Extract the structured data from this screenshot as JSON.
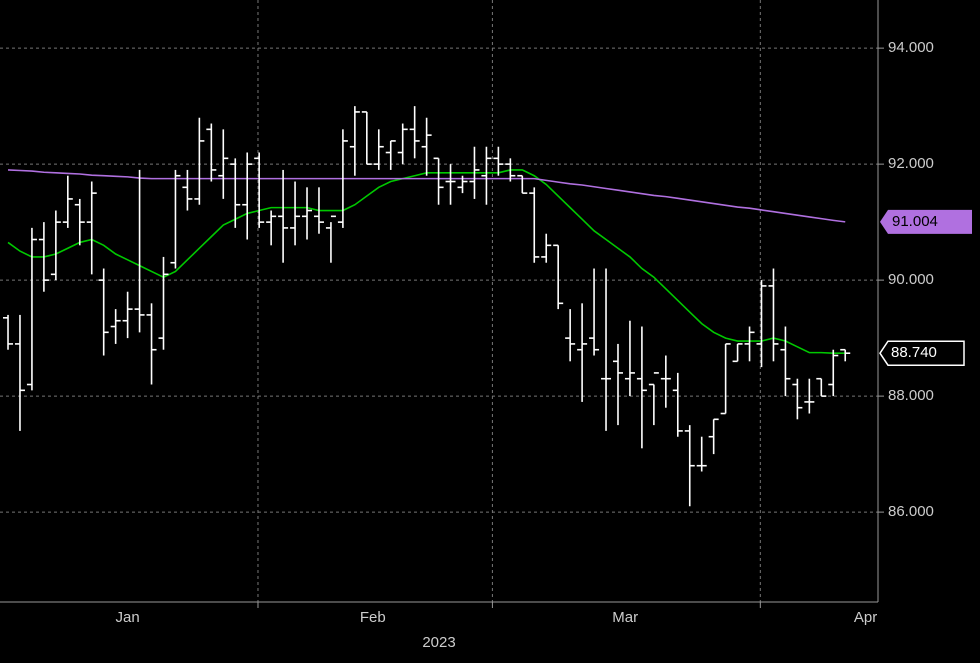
{
  "chart_data": {
    "type": "ohlc",
    "xlim": [
      -0.67,
      72.74
    ],
    "ylim": [
      84.45,
      94.83
    ],
    "yticks": [
      {
        "value": 86,
        "label": "86.000"
      },
      {
        "value": 88,
        "label": "88.000"
      },
      {
        "value": 90,
        "label": "90.000"
      },
      {
        "value": 92,
        "label": "92.000"
      },
      {
        "value": 94,
        "label": "94.000"
      }
    ],
    "xticks": [
      {
        "value": 10.0,
        "label": "Jan"
      },
      {
        "value": 30.5,
        "label": "Feb"
      },
      {
        "value": 51.6,
        "label": "Mar"
      },
      {
        "value": 71.7,
        "label": "Apr"
      }
    ],
    "xgrid": [
      20.9,
      40.5,
      62.9
    ],
    "x_title": "2023",
    "grid": true,
    "ohlc": {
      "color": "#ffffff",
      "open": [
        89.35,
        88.9,
        88.2,
        90.7,
        90.1,
        91.0,
        91.3,
        91.0,
        90.0,
        89.2,
        89.3,
        89.5,
        89.4,
        89.0,
        90.3,
        91.6,
        91.4,
        92.6,
        91.8,
        92.0,
        91.3,
        92.1,
        91.0,
        91.1,
        90.9,
        91.1,
        91.1,
        90.9,
        91.0,
        92.3,
        92.9,
        92.0,
        92.2,
        92.2,
        92.6,
        92.3,
        92.1,
        91.7,
        91.6,
        91.7,
        91.8,
        92.1,
        92.0,
        91.8,
        91.5,
        90.4,
        90.6,
        89.0,
        88.8,
        89.0,
        88.3,
        88.6,
        88.3,
        88.3,
        88.2,
        88.3,
        88.1,
        87.4,
        86.8,
        87.3,
        87.7,
        88.6,
        88.9,
        88.9,
        89.9,
        88.8,
        88.2,
        87.9,
        88.3,
        88.2,
        88.8
      ],
      "high": [
        89.4,
        89.4,
        90.9,
        91.0,
        91.2,
        91.8,
        91.4,
        91.7,
        90.2,
        89.5,
        89.8,
        91.9,
        89.6,
        90.4,
        91.9,
        91.9,
        92.8,
        92.7,
        92.6,
        92.1,
        92.2,
        92.2,
        91.2,
        91.9,
        91.7,
        91.6,
        91.6,
        91.0,
        92.6,
        93.0,
        92.9,
        92.6,
        92.4,
        92.7,
        93.0,
        92.8,
        92.1,
        92.0,
        91.8,
        92.3,
        92.3,
        92.3,
        92.1,
        91.8,
        91.6,
        90.8,
        90.6,
        89.5,
        89.6,
        90.2,
        90.2,
        88.9,
        89.3,
        89.2,
        88.2,
        88.7,
        88.4,
        87.5,
        87.3,
        87.6,
        88.9,
        88.9,
        89.2,
        90.0,
        90.2,
        89.2,
        88.3,
        88.3,
        88.3,
        88.8,
        88.8
      ],
      "low": [
        88.8,
        87.4,
        88.1,
        89.8,
        90.0,
        90.9,
        90.6,
        90.1,
        88.7,
        88.9,
        89.0,
        89.1,
        88.2,
        88.8,
        90.2,
        91.2,
        91.3,
        91.7,
        91.4,
        90.9,
        90.7,
        90.9,
        90.6,
        90.3,
        90.6,
        90.7,
        90.8,
        90.3,
        90.9,
        91.8,
        92.0,
        91.9,
        91.9,
        92.0,
        92.1,
        91.8,
        91.3,
        91.3,
        91.5,
        91.4,
        91.3,
        91.8,
        91.7,
        91.5,
        90.3,
        90.3,
        89.5,
        88.6,
        87.9,
        88.7,
        87.4,
        87.5,
        88.0,
        87.1,
        87.5,
        87.8,
        87.3,
        86.1,
        86.7,
        87.0,
        87.7,
        88.6,
        88.6,
        88.5,
        88.6,
        88.0,
        87.6,
        87.7,
        88.0,
        88.0,
        88.6
      ],
      "close": [
        88.9,
        88.1,
        90.7,
        90.0,
        91.0,
        91.4,
        91.0,
        91.5,
        89.1,
        89.3,
        89.5,
        89.4,
        88.8,
        90.1,
        91.8,
        91.4,
        92.4,
        91.9,
        92.1,
        91.3,
        92.0,
        91.0,
        91.1,
        90.9,
        91.1,
        91.2,
        91.0,
        91.1,
        92.4,
        92.9,
        92.0,
        92.3,
        92.4,
        92.6,
        92.4,
        92.5,
        91.6,
        91.7,
        91.7,
        91.9,
        92.1,
        92.0,
        91.8,
        91.5,
        90.4,
        90.6,
        89.6,
        88.9,
        88.9,
        88.8,
        88.3,
        88.4,
        88.4,
        88.1,
        88.4,
        88.3,
        87.4,
        86.8,
        86.8,
        87.6,
        88.9,
        88.9,
        89.1,
        89.9,
        88.9,
        88.3,
        87.8,
        87.9,
        88.0,
        88.7,
        88.74
      ]
    },
    "last_price_label": {
      "value": 88.74,
      "label": "88.740"
    },
    "series": [
      {
        "color": "#00c800",
        "values": [
          90.65,
          90.5,
          90.4,
          90.4,
          90.45,
          90.55,
          90.65,
          90.7,
          90.6,
          90.45,
          90.35,
          90.25,
          90.15,
          90.05,
          90.15,
          90.35,
          90.55,
          90.75,
          90.95,
          91.05,
          91.15,
          91.2,
          91.25,
          91.25,
          91.25,
          91.25,
          91.2,
          91.2,
          91.2,
          91.3,
          91.45,
          91.6,
          91.7,
          91.75,
          91.8,
          91.85,
          91.85,
          91.85,
          91.85,
          91.85,
          91.85,
          91.85,
          91.9,
          91.9,
          91.8,
          91.65,
          91.45,
          91.25,
          91.05,
          90.85,
          90.7,
          90.55,
          90.4,
          90.2,
          90.05,
          89.85,
          89.65,
          89.45,
          89.25,
          89.1,
          89.0,
          88.95,
          88.95,
          88.95,
          89.0,
          88.95,
          88.85,
          88.75,
          88.75,
          88.74,
          88.74
        ]
      },
      {
        "color": "#b070e0",
        "values": [
          91.9,
          91.89,
          91.88,
          91.86,
          91.85,
          91.84,
          91.83,
          91.81,
          91.8,
          91.79,
          91.78,
          91.76,
          91.75,
          91.75,
          91.75,
          91.75,
          91.75,
          91.75,
          91.75,
          91.75,
          91.75,
          91.75,
          91.75,
          91.75,
          91.75,
          91.75,
          91.75,
          91.75,
          91.75,
          91.75,
          91.75,
          91.75,
          91.75,
          91.75,
          91.75,
          91.75,
          91.75,
          91.75,
          91.75,
          91.75,
          91.75,
          91.75,
          91.75,
          91.75,
          91.75,
          91.72,
          91.69,
          91.66,
          91.64,
          91.61,
          91.58,
          91.55,
          91.52,
          91.49,
          91.46,
          91.44,
          91.41,
          91.38,
          91.35,
          91.32,
          91.29,
          91.26,
          91.24,
          91.21,
          91.18,
          91.15,
          91.12,
          91.09,
          91.06,
          91.03,
          91.004
        ],
        "last_label": true
      }
    ]
  }
}
